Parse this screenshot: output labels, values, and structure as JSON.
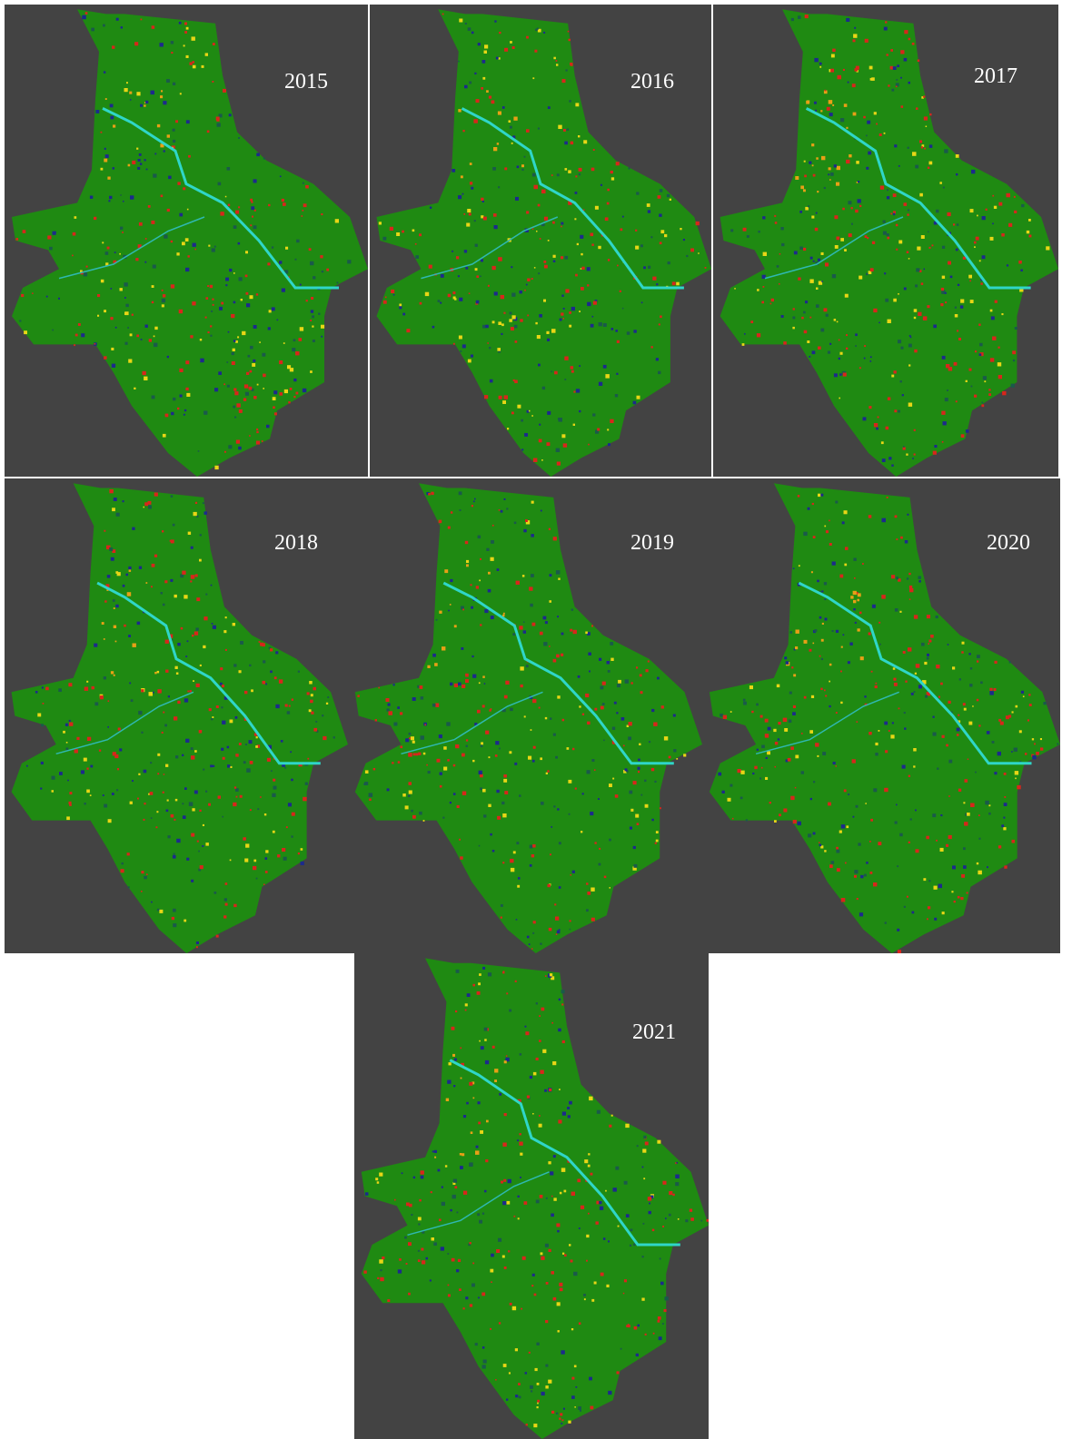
{
  "panels": [
    {
      "year": "2015"
    },
    {
      "year": "2016"
    },
    {
      "year": "2017"
    },
    {
      "year": "2018"
    },
    {
      "year": "2019"
    },
    {
      "year": "2020"
    },
    {
      "year": "2021"
    }
  ]
}
